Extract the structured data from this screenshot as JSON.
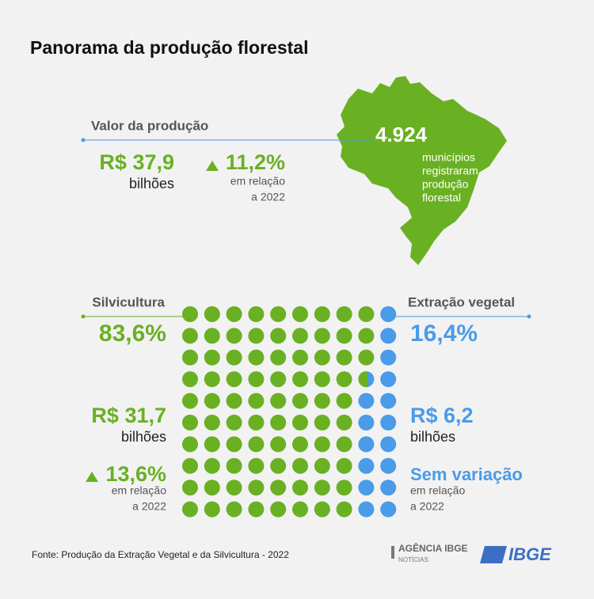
{
  "header": {
    "title": "Panorama da produção florestal"
  },
  "summary": {
    "label": "Valor da produção",
    "value": "R$ 37,9",
    "unit": "bilhões",
    "change": "11,2%",
    "note": [
      "em relação",
      "a 2022"
    ]
  },
  "map": {
    "count": "4.924",
    "text": [
      "municípios",
      "registraram",
      "produção",
      "florestal"
    ]
  },
  "waffle": {
    "type": "waffle",
    "segments": [
      {
        "name": "Silvicultura",
        "percent": 83.6,
        "percent_label": "83,6%",
        "color": "#6ab023",
        "value": "R$ 31,7",
        "unit": "bilhões",
        "change": "13,6%",
        "note": [
          "em relação",
          "a 2022"
        ]
      },
      {
        "name": "Extração vegetal",
        "percent": 16.4,
        "percent_label": "16,4%",
        "color": "#4a9be8",
        "value": "R$ 6,2",
        "unit": "bilhões",
        "change": "Sem variação",
        "note": [
          "em relação",
          "a 2022"
        ]
      }
    ]
  },
  "footer": {
    "source": "Fonte: Produção da Extração Vegetal e da Silvicultura - 2022",
    "agency": "AGÊNCIA IBGE",
    "agency_sub": "NOTÍCIAS",
    "logo": "IBGE"
  }
}
